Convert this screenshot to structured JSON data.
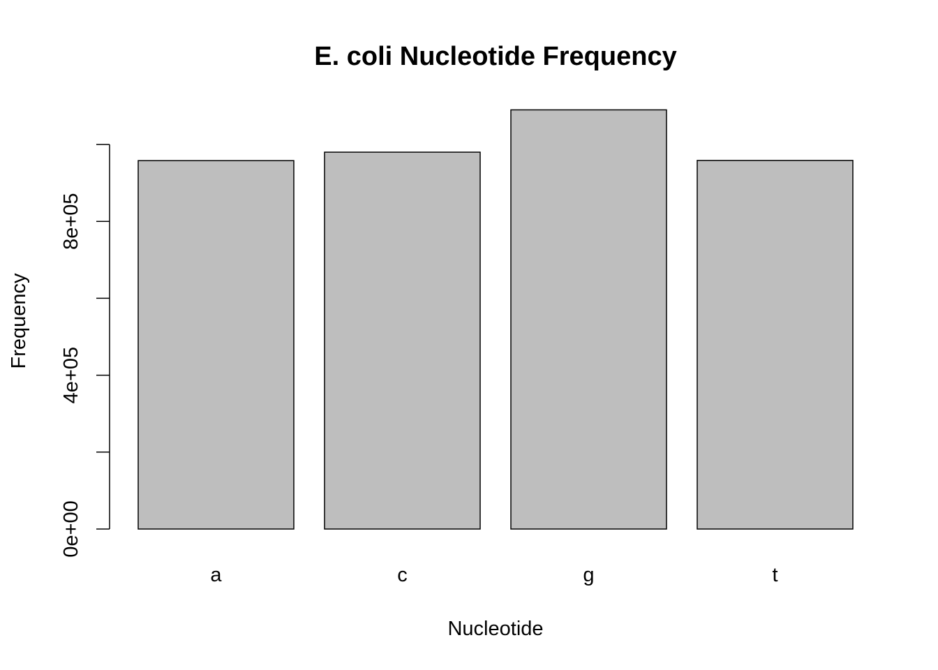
{
  "chart_data": {
    "type": "bar",
    "title": "E. coli Nucleotide Frequency",
    "xlabel": "Nucleotide",
    "ylabel": "Frequency",
    "categories": [
      "a",
      "c",
      "g",
      "t"
    ],
    "values": [
      958000,
      980000,
      1090000,
      958500
    ],
    "ylim": [
      0,
      1000000
    ],
    "yticks": [
      0,
      200000,
      400000,
      600000,
      800000,
      1000000
    ],
    "ytick_labels": [
      {
        "value": 0,
        "label": "0e+00"
      },
      {
        "value": 400000,
        "label": "4e+05"
      },
      {
        "value": 800000,
        "label": "8e+05"
      }
    ],
    "bar_color": "#bebebe",
    "border_color": "#000000",
    "grid": false,
    "legend": "none"
  }
}
